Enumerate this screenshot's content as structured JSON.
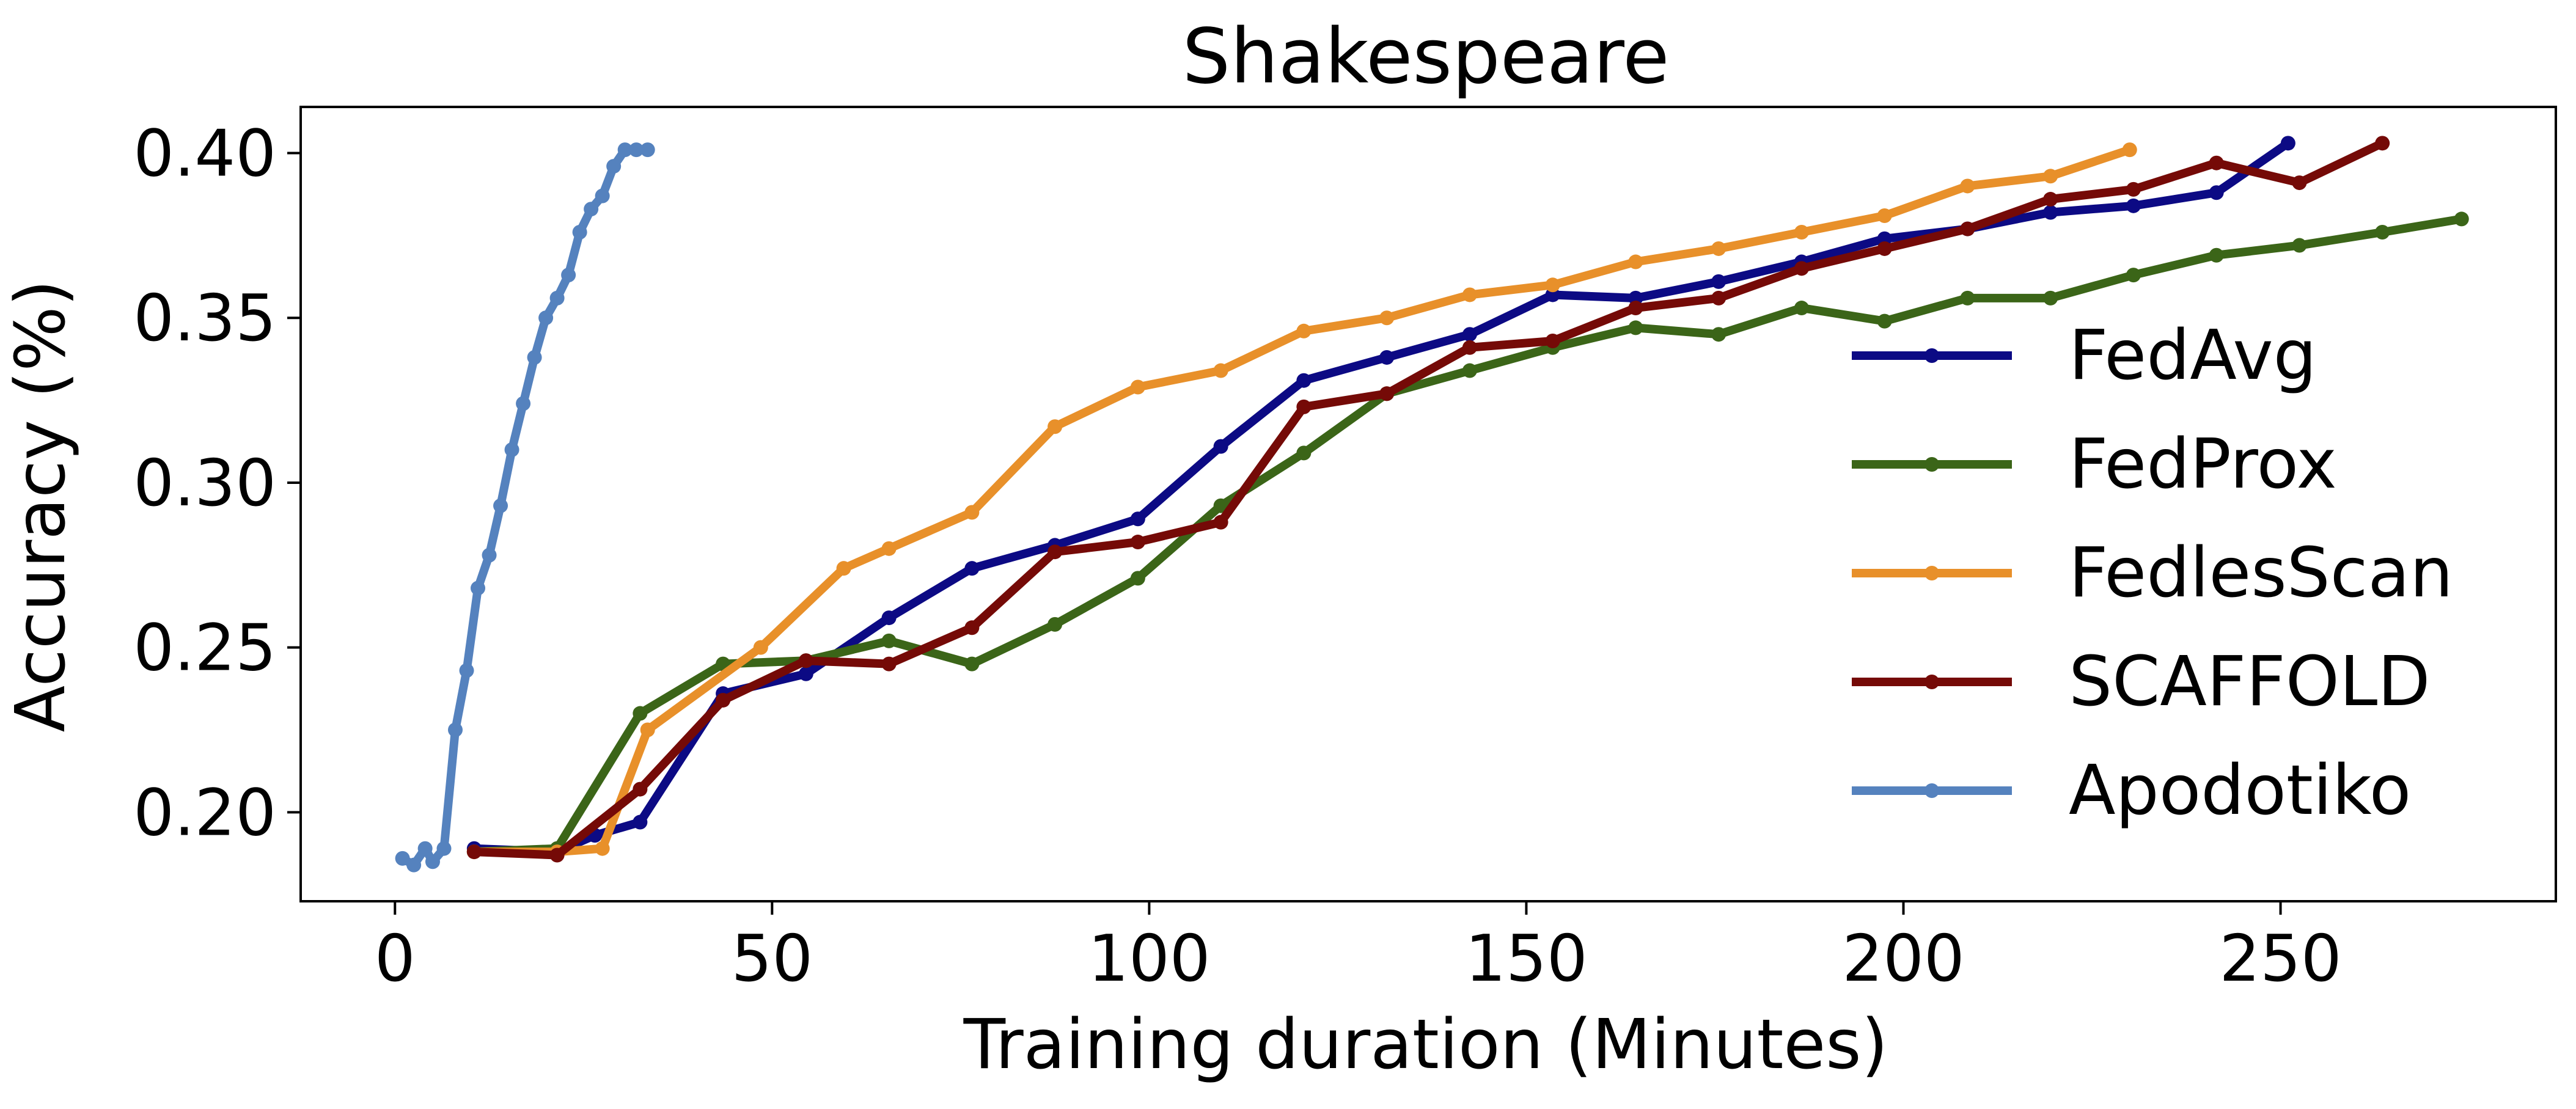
{
  "chart_data": {
    "type": "line",
    "title": "Shakespeare",
    "xlabel": "Training duration (Minutes)",
    "ylabel": "Accuracy (%)",
    "xlim": [
      -12.5,
      286.5
    ],
    "ylim": [
      0.173,
      0.414
    ],
    "xticks": [
      0,
      50,
      100,
      150,
      200,
      250
    ],
    "yticks": [
      0.2,
      0.25,
      0.3,
      0.35,
      0.4
    ],
    "ytick_labels": [
      "0.20",
      "0.25",
      "0.30",
      "0.35",
      "0.40"
    ],
    "grid": false,
    "legend_position": "center-right",
    "series": [
      {
        "name": "FedAvg",
        "color": "#0c0a84",
        "x": [
          10.5,
          21.5,
          26.5,
          32.5,
          43.5,
          54.5,
          65.5,
          76.5,
          87.5,
          98.5,
          109.5,
          120.5,
          131.5,
          142.5,
          153.5,
          164.5,
          175.5,
          186.5,
          197.5,
          208.5,
          219.5,
          230.5,
          241.5,
          251.0
        ],
        "y": [
          0.189,
          0.188,
          0.193,
          0.197,
          0.236,
          0.242,
          0.259,
          0.274,
          0.281,
          0.289,
          0.311,
          0.331,
          0.338,
          0.345,
          0.357,
          0.356,
          0.361,
          0.367,
          0.374,
          0.377,
          0.382,
          0.384,
          0.388,
          0.403
        ]
      },
      {
        "name": "FedProx",
        "color": "#3b6518",
        "x": [
          10.5,
          21.5,
          32.5,
          43.5,
          54.5,
          65.5,
          76.5,
          87.5,
          98.5,
          109.5,
          120.5,
          131.5,
          142.5,
          153.5,
          164.5,
          175.5,
          186.5,
          197.5,
          208.5,
          219.5,
          230.5,
          241.5,
          252.5,
          263.5,
          274.0
        ],
        "y": [
          0.188,
          0.189,
          0.23,
          0.245,
          0.246,
          0.252,
          0.245,
          0.257,
          0.271,
          0.293,
          0.309,
          0.327,
          0.334,
          0.341,
          0.347,
          0.345,
          0.353,
          0.349,
          0.356,
          0.356,
          0.363,
          0.369,
          0.372,
          0.376,
          0.38
        ]
      },
      {
        "name": "FedlesScan",
        "color": "#e8902a",
        "x": [
          10.5,
          21.5,
          27.5,
          33.5,
          48.5,
          59.5,
          65.5,
          76.5,
          87.5,
          98.5,
          109.5,
          120.5,
          131.5,
          142.5,
          153.5,
          164.5,
          175.5,
          186.5,
          197.5,
          208.5,
          219.5,
          230.0
        ],
        "y": [
          0.188,
          0.188,
          0.189,
          0.225,
          0.25,
          0.274,
          0.28,
          0.291,
          0.317,
          0.329,
          0.334,
          0.346,
          0.35,
          0.357,
          0.36,
          0.367,
          0.371,
          0.376,
          0.381,
          0.39,
          0.393,
          0.401
        ]
      },
      {
        "name": "SCAFFOLD",
        "color": "#750a07",
        "x": [
          10.5,
          21.5,
          32.5,
          43.5,
          54.5,
          65.5,
          76.5,
          87.5,
          98.5,
          109.5,
          120.5,
          131.5,
          142.5,
          153.5,
          164.5,
          175.5,
          186.5,
          197.5,
          208.5,
          219.5,
          230.5,
          241.5,
          252.5,
          263.5
        ],
        "y": [
          0.188,
          0.187,
          0.207,
          0.234,
          0.246,
          0.245,
          0.256,
          0.279,
          0.282,
          0.288,
          0.323,
          0.327,
          0.341,
          0.343,
          0.353,
          0.356,
          0.365,
          0.371,
          0.377,
          0.386,
          0.389,
          0.397,
          0.391,
          0.403
        ]
      },
      {
        "name": "Apodotiko",
        "color": "#5582be",
        "x": [
          1.0,
          2.5,
          4.0,
          5.0,
          6.5,
          8.0,
          9.5,
          11.0,
          12.5,
          14.0,
          15.5,
          17.0,
          18.5,
          20.0,
          21.5,
          23.0,
          24.5,
          26.0,
          27.5,
          29.0,
          30.5,
          32.0,
          33.5
        ],
        "y": [
          0.186,
          0.184,
          0.189,
          0.185,
          0.189,
          0.225,
          0.243,
          0.268,
          0.278,
          0.293,
          0.31,
          0.324,
          0.338,
          0.35,
          0.356,
          0.363,
          0.376,
          0.383,
          0.387,
          0.396,
          0.401,
          0.401,
          0.401
        ]
      }
    ]
  }
}
